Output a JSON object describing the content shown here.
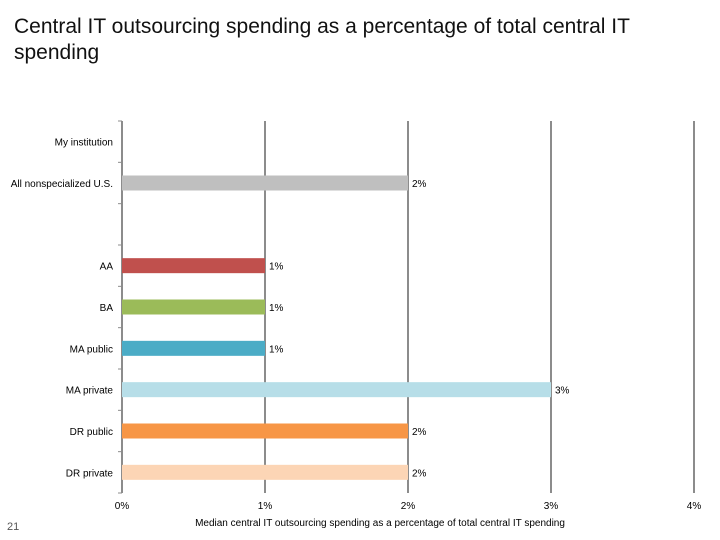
{
  "slide": {
    "title": "Central IT outsourcing spending as a percentage of total central IT spending",
    "page_number": "21"
  },
  "chart_data": {
    "type": "bar",
    "orientation": "horizontal",
    "categories": [
      "My institution",
      "All nonspecialized U.S.",
      "",
      "AA",
      "BA",
      "MA public",
      "MA private",
      "DR public",
      "DR private"
    ],
    "values": [
      null,
      2,
      null,
      1,
      1,
      1,
      3,
      2,
      2
    ],
    "data_labels": [
      "",
      "2%",
      "",
      "1%",
      "1%",
      "1%",
      "3%",
      "2%",
      "2%"
    ],
    "bar_colors": [
      "#bfbfbf",
      "#bfbfbf",
      "#bfbfbf",
      "#c0504d",
      "#9bbb59",
      "#4bacc6",
      "#b7dee8",
      "#f79646",
      "#fcd5b5"
    ],
    "xlim": [
      0,
      4
    ],
    "x_ticks": [
      0,
      1,
      2,
      3,
      4
    ],
    "x_tick_labels": [
      "0%",
      "1%",
      "2%",
      "3%",
      "4%"
    ],
    "xlabel": "Median central IT outsourcing spending as a percentage of total central IT spending",
    "grid": "vertical",
    "legend": "none"
  }
}
